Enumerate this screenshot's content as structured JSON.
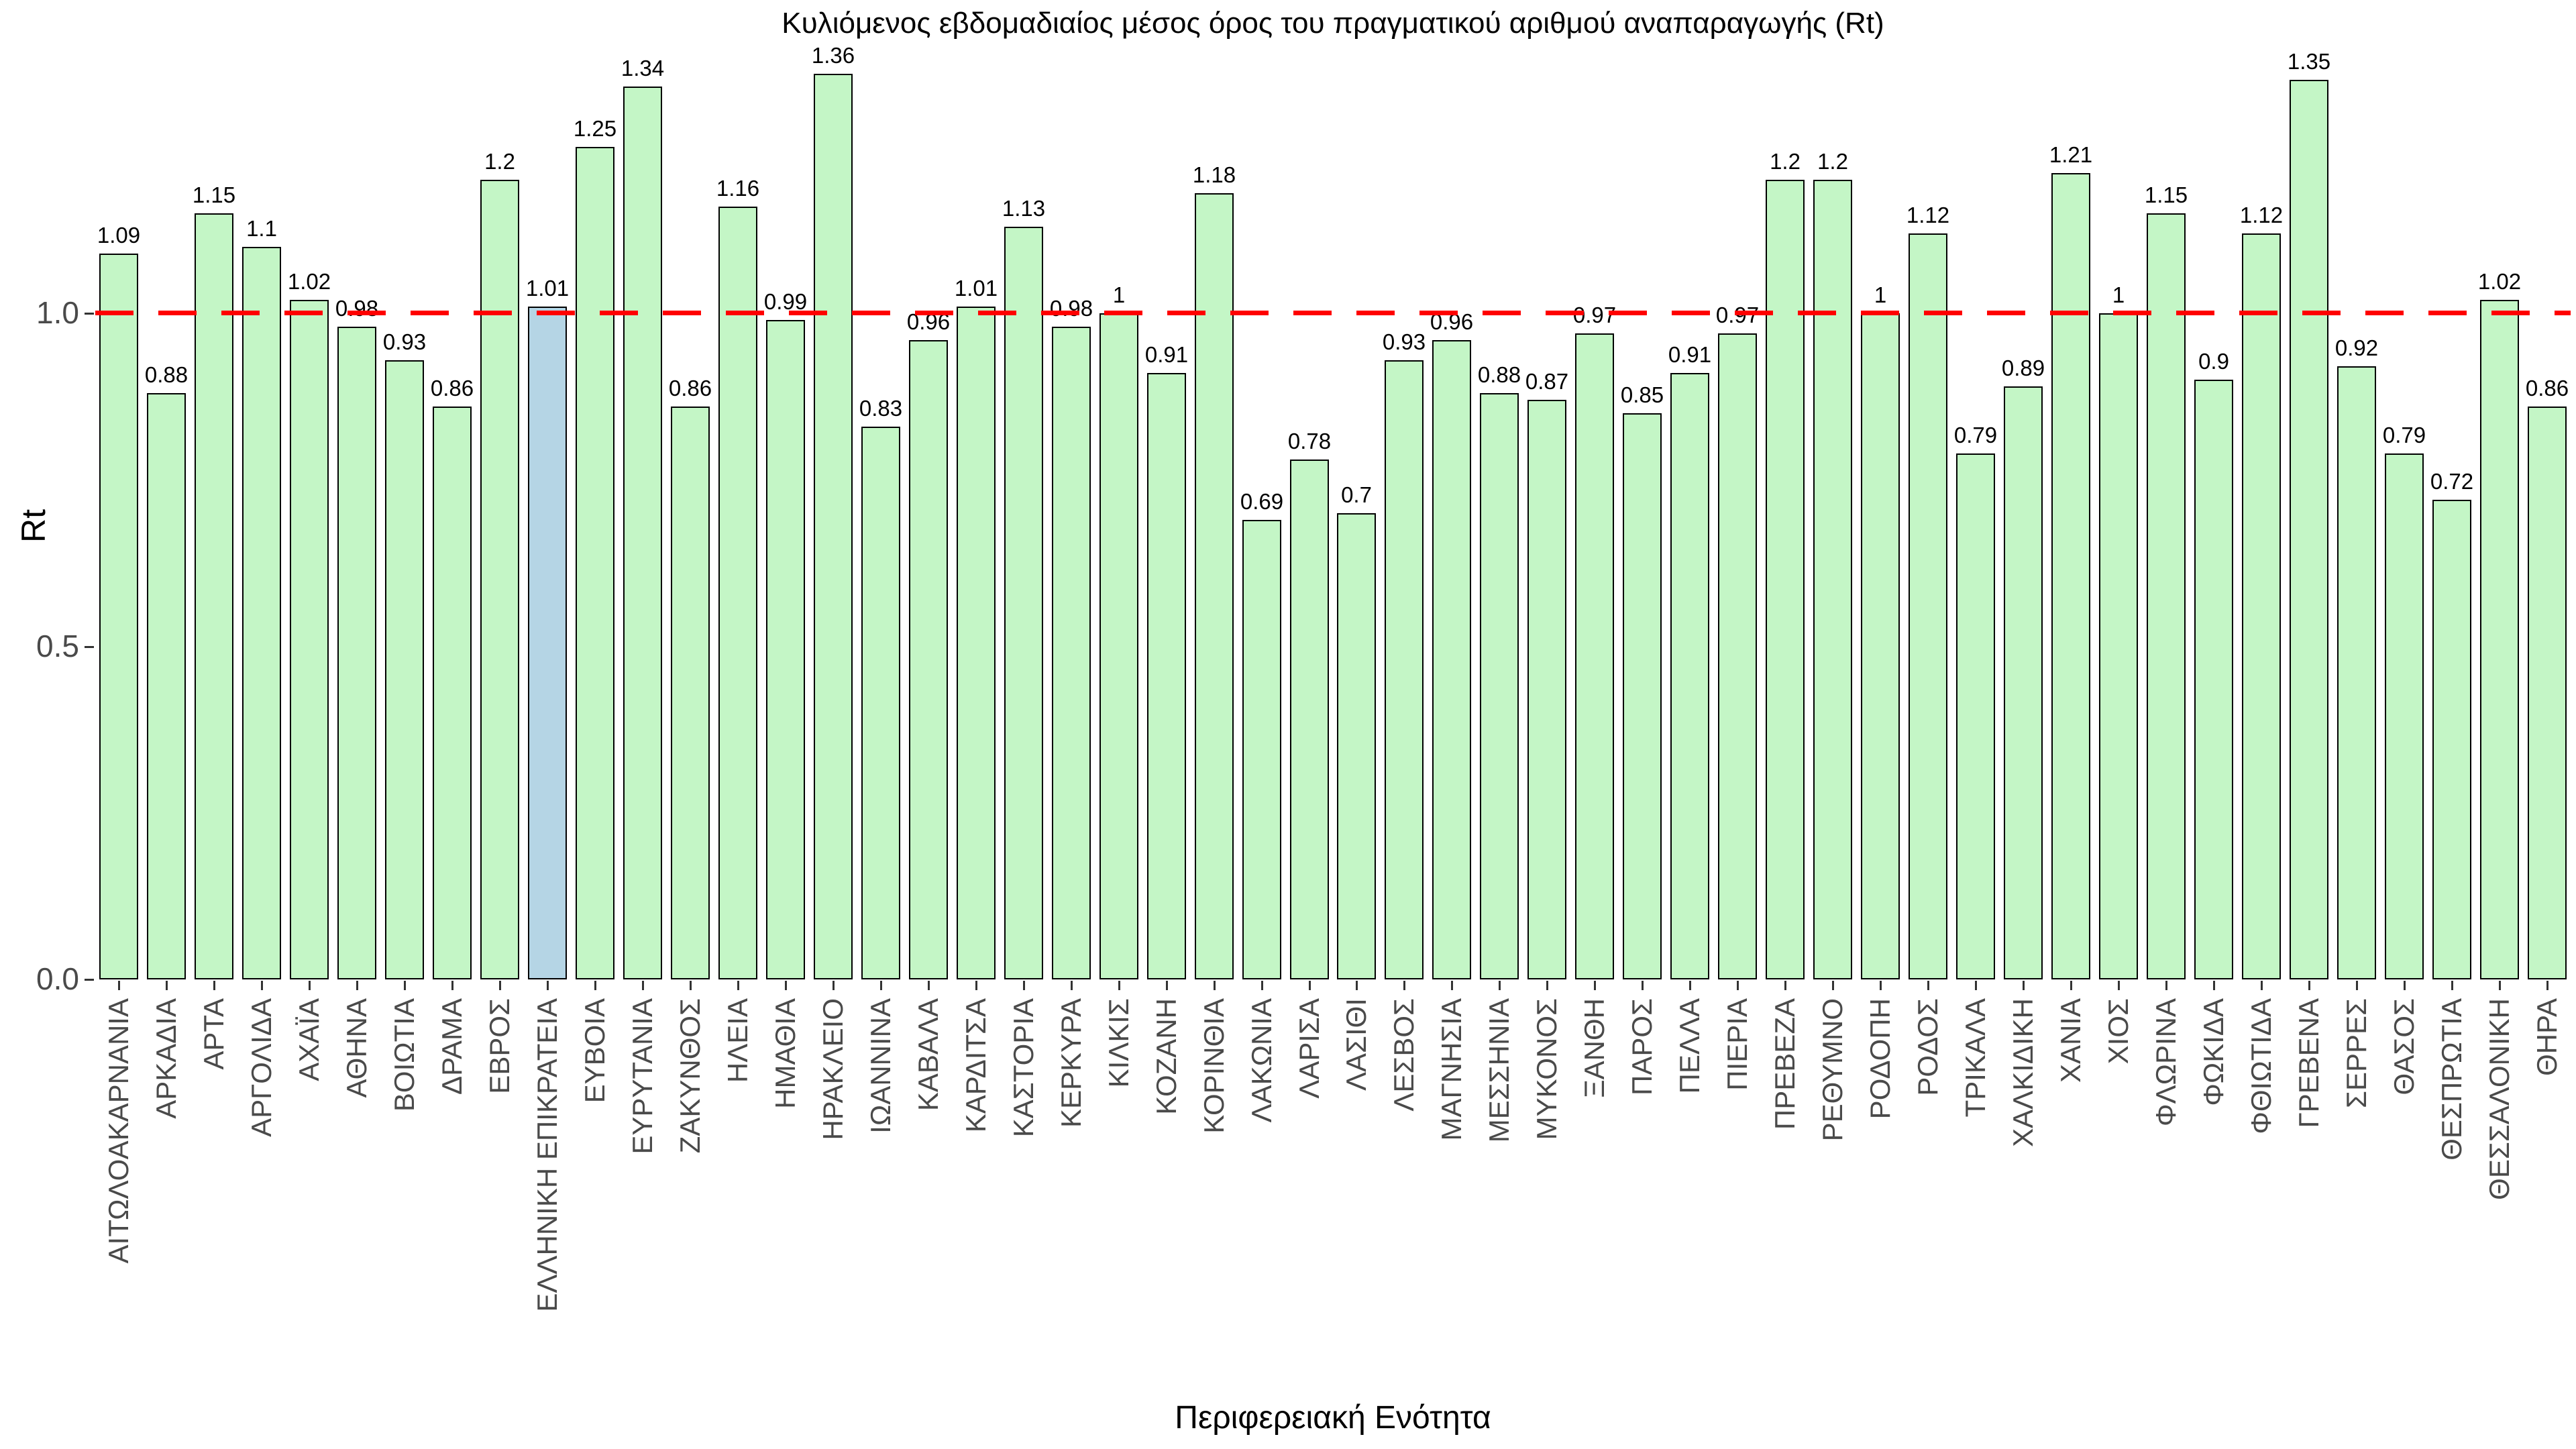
{
  "chart_data": {
    "type": "bar",
    "title": "Κυλιόμενος εβδομαδιαίος μέσος όρος του πραγματικού αριθμού αναπαραγωγής (Rt)",
    "xlabel": "Περιφερειακή Ενότητα",
    "ylabel": "Rt",
    "ylim": [
      0,
      1.42
    ],
    "yticks": [
      0,
      0.5,
      1
    ],
    "ytick_labels": [
      "0.0",
      "0.5",
      "1.0"
    ],
    "grid": false,
    "legend": false,
    "reference_line": {
      "y": 1,
      "color": "#ff0000",
      "style": "dashed"
    },
    "bar_fill": "#c4f6c6",
    "bar_border": "#000000",
    "highlight_category": "ΕΛΛΗΝΙΚΗ ΕΠΙΚΡΑΤΕΙΑ",
    "highlight_fill": "#b5d5e5",
    "categories": [
      "ΑΙΤΩΛΟΑΚΑΡΝΑΝΙΑ",
      "ΑΡΚΑΔΙΑ",
      "ΑΡΤΑ",
      "ΑΡΓΟΛΙΔΑ",
      "ΑΧΑΪΑ",
      "ΑΘΗΝΑ",
      "ΒΟΙΩΤΙΑ",
      "ΔΡΑΜΑ",
      "ΕΒΡΟΣ",
      "ΕΛΛΗΝΙΚΗ ΕΠΙΚΡΑΤΕΙΑ",
      "ΕΥΒΟΙΑ",
      "ΕΥΡΥΤΑΝΙΑ",
      "ΖΑΚΥΝΘΟΣ",
      "ΗΛΕΙΑ",
      "ΗΜΑΘΙΑ",
      "ΗΡΑΚΛΕΙΟ",
      "ΙΩΑΝΝΙΝΑ",
      "ΚΑΒΑΛΑ",
      "ΚΑΡΔΙΤΣΑ",
      "ΚΑΣΤΟΡΙΑ",
      "ΚΕΡΚΥΡΑ",
      "ΚΙΛΚΙΣ",
      "ΚΟΖΑΝΗ",
      "ΚΟΡΙΝΘΙΑ",
      "ΛΑΚΩΝΙΑ",
      "ΛΑΡΙΣΑ",
      "ΛΑΣΙΘΙ",
      "ΛΕΣΒΟΣ",
      "ΜΑΓΝΗΣΙΑ",
      "ΜΕΣΣΗΝΙΑ",
      "ΜΥΚΟΝΟΣ",
      "ΞΑΝΘΗ",
      "ΠΑΡΟΣ",
      "ΠΕΛΛΑ",
      "ΠΙΕΡΙΑ",
      "ΠΡΕΒΕΖΑ",
      "ΡΕΘΥΜΝΟ",
      "ΡΟΔΟΠΗ",
      "ΡΟΔΟΣ",
      "ΤΡΙΚΑΛΑ",
      "ΧΑΛΚΙΔΙΚΗ",
      "ΧΑΝΙΑ",
      "ΧΙΟΣ",
      "ΦΛΩΡΙΝΑ",
      "ΦΩΚΙΔΑ",
      "ΦΘΙΩΤΙΔΑ",
      "ΓΡΕΒΕΝΑ",
      "ΣΕΡΡΕΣ",
      "ΘΑΣΟΣ",
      "ΘΕΣΠΡΩΤΙΑ",
      "ΘΕΣΣΑΛΟΝΙΚΗ",
      "ΘΗΡΑ"
    ],
    "values": [
      1.09,
      0.88,
      1.15,
      1.1,
      1.02,
      0.98,
      0.93,
      0.86,
      1.2,
      1.01,
      1.25,
      1.34,
      0.86,
      1.16,
      0.99,
      1.36,
      0.83,
      0.96,
      1.01,
      1.13,
      0.98,
      1,
      0.91,
      1.18,
      0.69,
      0.78,
      0.7,
      0.93,
      0.96,
      0.88,
      0.87,
      0.97,
      0.85,
      0.91,
      0.97,
      1.2,
      1.2,
      1,
      1.12,
      0.79,
      0.89,
      1.21,
      1,
      1.15,
      0.9,
      1.12,
      1.35,
      0.92,
      0.79,
      0.72,
      1.02,
      0.86
    ]
  }
}
